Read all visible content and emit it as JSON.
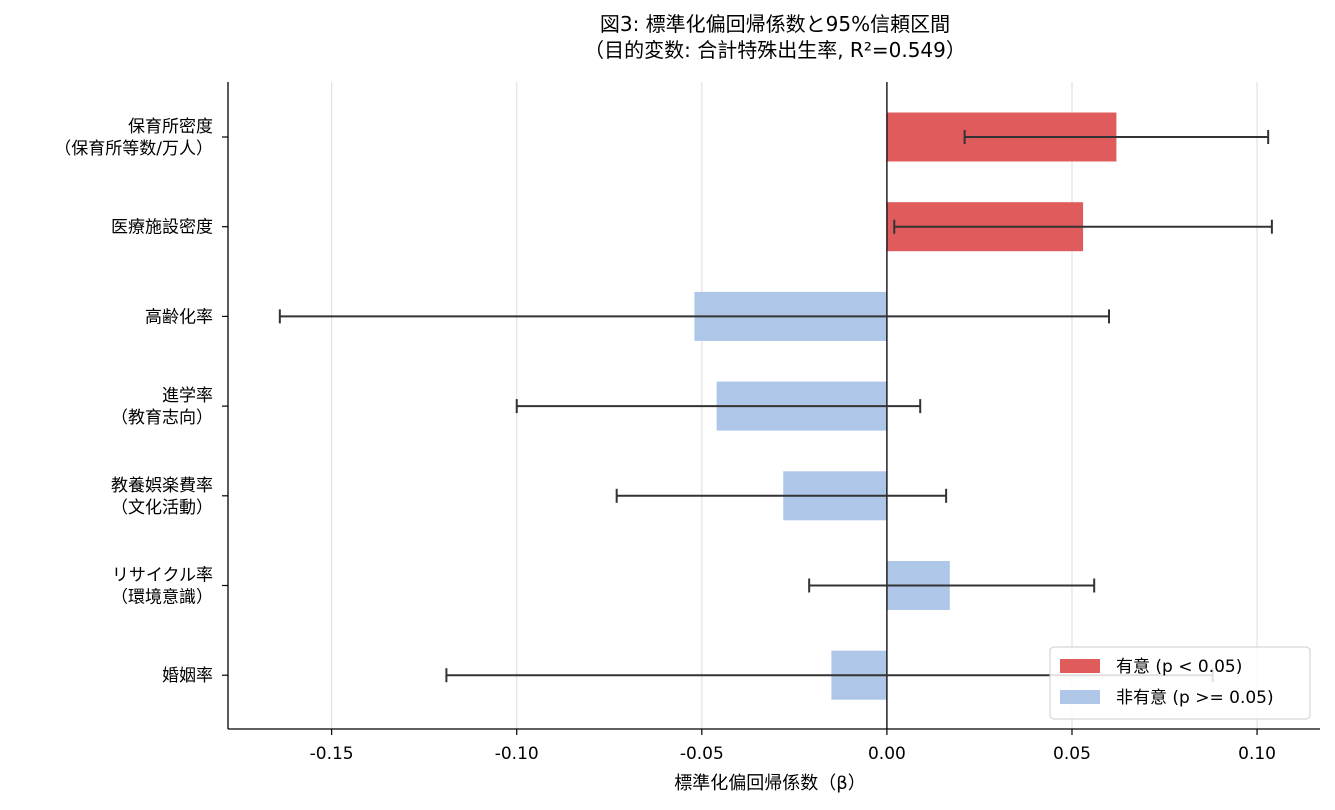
{
  "chart_data": {
    "type": "bar",
    "orientation": "horizontal",
    "title_lines": [
      "図3: 標準化偏回帰係数と95%信頼区間",
      "（目的変数: 合計特殊出生率, R²=0.549）"
    ],
    "xlabel": "標準化偏回帰係数（β）",
    "ylabel": "",
    "xlim": [
      -0.178,
      0.117
    ],
    "xticks": [
      -0.15,
      -0.1,
      -0.05,
      0.0,
      0.05,
      0.1
    ],
    "xtick_labels": [
      "-0.15",
      "-0.10",
      "-0.05",
      "0.00",
      "0.05",
      "0.10"
    ],
    "grid": "x",
    "legend_position": "lower-right",
    "colors": {
      "significant": "#e05c5c",
      "nonsignificant": "#aec7e8",
      "errorbar": "#333333"
    },
    "legend": [
      {
        "label": "有意 (p < 0.05)",
        "key": "significant"
      },
      {
        "label": "非有意 (p >= 0.05)",
        "key": "nonsignificant"
      }
    ],
    "categories": [
      {
        "label_lines": [
          "保育所密度",
          "（保育所等数/万人）"
        ],
        "value": 0.062,
        "ci_low": 0.021,
        "ci_high": 0.103,
        "significant": true
      },
      {
        "label_lines": [
          "医療施設密度"
        ],
        "value": 0.053,
        "ci_low": 0.002,
        "ci_high": 0.104,
        "significant": true
      },
      {
        "label_lines": [
          "高齢化率"
        ],
        "value": -0.052,
        "ci_low": -0.164,
        "ci_high": 0.06,
        "significant": false
      },
      {
        "label_lines": [
          "進学率",
          "（教育志向）"
        ],
        "value": -0.046,
        "ci_low": -0.1,
        "ci_high": 0.009,
        "significant": false
      },
      {
        "label_lines": [
          "教養娯楽費率",
          "（文化活動）"
        ],
        "value": -0.028,
        "ci_low": -0.073,
        "ci_high": 0.016,
        "significant": false
      },
      {
        "label_lines": [
          "リサイクル率",
          "（環境意識）"
        ],
        "value": 0.017,
        "ci_low": -0.021,
        "ci_high": 0.056,
        "significant": false
      },
      {
        "label_lines": [
          "婚姻率"
        ],
        "value": -0.015,
        "ci_low": -0.119,
        "ci_high": 0.088,
        "significant": false
      }
    ]
  }
}
